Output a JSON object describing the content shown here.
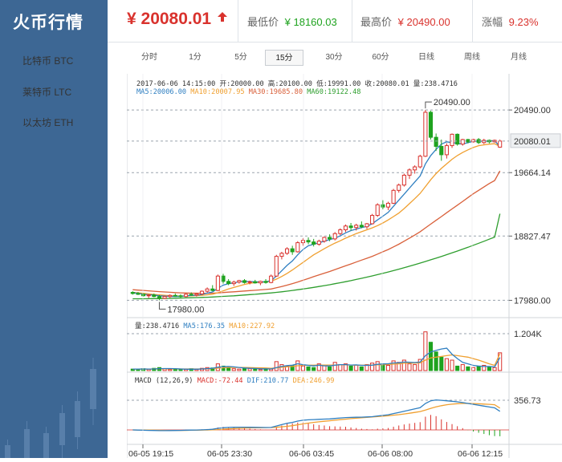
{
  "app": {
    "title": "火币行情"
  },
  "sidebar": {
    "items": [
      {
        "label": "比特币 BTC",
        "active": true
      },
      {
        "label": "莱特币 LTC",
        "active": false
      },
      {
        "label": "以太坊 ETH",
        "active": false
      }
    ]
  },
  "header": {
    "current_price": "¥ 20080.01",
    "trend": "up",
    "low": {
      "label": "最低价",
      "value": "¥ 18160.03"
    },
    "high": {
      "label": "最高价",
      "value": "¥ 20490.00"
    },
    "change": {
      "label": "涨幅",
      "value": "9.23%"
    }
  },
  "tabs": [
    {
      "label": "分时",
      "active": false
    },
    {
      "label": "1分",
      "active": false
    },
    {
      "label": "5分",
      "active": false
    },
    {
      "label": "15分",
      "active": true
    },
    {
      "label": "30分",
      "active": false
    },
    {
      "label": "60分",
      "active": false
    },
    {
      "label": "日线",
      "active": false
    },
    {
      "label": "周线",
      "active": false
    },
    {
      "label": "月线",
      "active": false
    }
  ],
  "kline_info": {
    "line1": "2017-06-06 14:15:00  开:20000.00 高:20100.00 低:19991.00 收:20080.01 量:238.4716",
    "ma5": "MA5:20006.00",
    "ma10": "MA10:20007.95",
    "ma30": "MA30:19685.80",
    "ma60": "MA60:19122.48"
  },
  "volume_info": {
    "vol": "量:238.4716",
    "ma5": "MA5:176.35",
    "ma10": "MA10:227.92"
  },
  "macd_info": {
    "label": "MACD (12,26,9)",
    "macd": "MACD:-72.44",
    "dif": "DIF:210.77",
    "dea": "DEA:246.99"
  },
  "colors": {
    "up": "#d9322d",
    "down": "#1fa31f",
    "ma5": "#2f7fc1",
    "ma10": "#f0a030",
    "ma30": "#d9603a",
    "ma60": "#2e9e2e",
    "sidebar": "#3d6794"
  },
  "chart_data": {
    "type": "candlestick",
    "price_axis_ticks": [
      "20490.00",
      "19664.14",
      "18827.47",
      "17980.00"
    ],
    "current_price_label": "20080.01",
    "high_marker": "20490.00",
    "low_marker": "17980.00",
    "volume_axis_ticks": [
      "1.204K"
    ],
    "macd_axis_ticks": [
      "356.73"
    ],
    "x_ticks": [
      "06-05 19:15",
      "06-05 23:30",
      "06-06 03:45",
      "06-06 08:00",
      "06-06 12:15"
    ],
    "ohlc": [
      [
        18085,
        18100,
        18055,
        18070
      ],
      [
        18070,
        18090,
        18050,
        18060
      ],
      [
        18060,
        18075,
        18030,
        18040
      ],
      [
        18040,
        18060,
        18010,
        18050
      ],
      [
        18050,
        18070,
        18020,
        18030
      ],
      [
        18030,
        18050,
        17980,
        18005
      ],
      [
        18005,
        18040,
        17995,
        18030
      ],
      [
        18030,
        18060,
        18010,
        18045
      ],
      [
        18045,
        18070,
        18030,
        18040
      ],
      [
        18040,
        18060,
        18015,
        18030
      ],
      [
        18030,
        18070,
        18020,
        18060
      ],
      [
        18060,
        18085,
        18040,
        18050
      ],
      [
        18050,
        18075,
        18030,
        18065
      ],
      [
        18065,
        18110,
        18055,
        18100
      ],
      [
        18100,
        18150,
        18080,
        18130
      ],
      [
        18130,
        18180,
        18100,
        18110
      ],
      [
        18110,
        18320,
        18100,
        18300
      ],
      [
        18300,
        18330,
        18200,
        18230
      ],
      [
        18230,
        18260,
        18180,
        18200
      ],
      [
        18200,
        18240,
        18170,
        18220
      ],
      [
        18220,
        18250,
        18200,
        18240
      ],
      [
        18240,
        18260,
        18200,
        18215
      ],
      [
        18215,
        18240,
        18190,
        18225
      ],
      [
        18225,
        18250,
        18200,
        18210
      ],
      [
        18210,
        18240,
        18180,
        18230
      ],
      [
        18230,
        18260,
        18200,
        18215
      ],
      [
        18215,
        18320,
        18205,
        18300
      ],
      [
        18300,
        18580,
        18290,
        18560
      ],
      [
        18560,
        18620,
        18520,
        18600
      ],
      [
        18600,
        18680,
        18580,
        18660
      ],
      [
        18660,
        18700,
        18580,
        18620
      ],
      [
        18620,
        18760,
        18610,
        18740
      ],
      [
        18740,
        18800,
        18700,
        18770
      ],
      [
        18770,
        18810,
        18720,
        18750
      ],
      [
        18750,
        18790,
        18690,
        18720
      ],
      [
        18720,
        18780,
        18700,
        18760
      ],
      [
        18760,
        18820,
        18740,
        18810
      ],
      [
        18810,
        18850,
        18760,
        18790
      ],
      [
        18790,
        18880,
        18770,
        18860
      ],
      [
        18860,
        18930,
        18840,
        18910
      ],
      [
        18910,
        18980,
        18880,
        18960
      ],
      [
        18960,
        19000,
        18900,
        18940
      ],
      [
        18940,
        18990,
        18900,
        18970
      ],
      [
        18970,
        19020,
        18930,
        18950
      ],
      [
        18950,
        19000,
        18920,
        18990
      ],
      [
        18990,
        19120,
        18980,
        19100
      ],
      [
        19100,
        19260,
        19080,
        19240
      ],
      [
        19240,
        19300,
        19180,
        19210
      ],
      [
        19210,
        19280,
        19170,
        19260
      ],
      [
        19260,
        19450,
        19250,
        19430
      ],
      [
        19430,
        19520,
        19400,
        19500
      ],
      [
        19500,
        19650,
        19480,
        19630
      ],
      [
        19630,
        19720,
        19580,
        19700
      ],
      [
        19700,
        19760,
        19650,
        19740
      ],
      [
        19740,
        19900,
        19720,
        19880
      ],
      [
        19880,
        20490,
        19870,
        20460
      ],
      [
        20460,
        20480,
        20100,
        20130
      ],
      [
        20130,
        20180,
        19950,
        20010
      ],
      [
        20010,
        20100,
        19820,
        19900
      ],
      [
        19900,
        20050,
        19850,
        20020
      ],
      [
        20020,
        20180,
        19990,
        20170
      ],
      [
        20170,
        20180,
        20020,
        20040
      ],
      [
        20040,
        20110,
        20020,
        20100
      ],
      [
        20100,
        20110,
        20050,
        20070
      ],
      [
        20070,
        20110,
        20060,
        20100
      ],
      [
        20100,
        20120,
        20040,
        20060
      ],
      [
        20060,
        20110,
        20040,
        20090
      ],
      [
        20090,
        20100,
        20050,
        20070
      ],
      [
        20070,
        20100,
        20060,
        20090
      ],
      [
        20000,
        20100,
        19991,
        20080.01
      ]
    ],
    "volume": [
      20,
      15,
      25,
      18,
      30,
      40,
      22,
      15,
      12,
      20,
      18,
      25,
      15,
      30,
      40,
      35,
      90,
      60,
      40,
      25,
      20,
      30,
      25,
      20,
      15,
      30,
      20,
      120,
      80,
      60,
      70,
      130,
      60,
      50,
      40,
      90,
      70,
      50,
      110,
      80,
      90,
      60,
      70,
      50,
      80,
      100,
      120,
      90,
      70,
      130,
      110,
      140,
      90,
      80,
      150,
      520,
      380,
      250,
      180,
      160,
      140,
      60,
      80,
      50,
      40,
      60,
      70,
      50,
      40,
      238.47
    ],
    "ma5": [
      18080,
      18072,
      18060,
      18053,
      18050,
      18040,
      18035,
      18032,
      18030,
      18032,
      18040,
      18045,
      18048,
      18058,
      18075,
      18090,
      18140,
      18180,
      18200,
      18210,
      18225,
      18230,
      18228,
      18225,
      18222,
      18225,
      18240,
      18300,
      18370,
      18440,
      18500,
      18580,
      18650,
      18700,
      18720,
      18740,
      18760,
      18780,
      18800,
      18830,
      18870,
      18900,
      18920,
      18940,
      18955,
      18990,
      19040,
      19090,
      19140,
      19220,
      19300,
      19380,
      19460,
      19540,
      19620,
      19780,
      19890,
      19970,
      20040,
      20070,
      20060,
      20050,
      20040,
      20060,
      20075,
      20080,
      20078,
      20080,
      20085,
      20006
    ],
    "ma10": [
      18085,
      18080,
      18072,
      18065,
      18058,
      18052,
      18046,
      18041,
      18037,
      18035,
      18037,
      18040,
      18043,
      18046,
      18052,
      18060,
      18080,
      18105,
      18130,
      18150,
      18170,
      18190,
      18205,
      18213,
      18218,
      18225,
      18232,
      18260,
      18295,
      18335,
      18380,
      18430,
      18480,
      18530,
      18580,
      18620,
      18660,
      18700,
      18735,
      18765,
      18800,
      18830,
      18860,
      18885,
      18910,
      18935,
      18965,
      19000,
      19040,
      19085,
      19130,
      19190,
      19255,
      19320,
      19390,
      19480,
      19570,
      19650,
      19720,
      19780,
      19840,
      19890,
      19930,
      19965,
      19995,
      20020,
      20030,
      20040,
      20045,
      20008
    ],
    "ma30": [
      18120,
      18115,
      18110,
      18105,
      18100,
      18095,
      18090,
      18086,
      18082,
      18079,
      18077,
      18075,
      18074,
      18073,
      18073,
      18074,
      18078,
      18083,
      18088,
      18093,
      18098,
      18103,
      18108,
      18113,
      18118,
      18123,
      18130,
      18145,
      18162,
      18180,
      18200,
      18222,
      18245,
      18268,
      18292,
      18315,
      18338,
      18360,
      18385,
      18410,
      18435,
      18460,
      18485,
      18510,
      18535,
      18560,
      18590,
      18620,
      18650,
      18685,
      18720,
      18760,
      18800,
      18840,
      18885,
      18935,
      18985,
      19035,
      19085,
      19135,
      19185,
      19235,
      19285,
      19335,
      19385,
      19430,
      19475,
      19520,
      19560,
      19686
    ],
    "ma60": [
      18000,
      18000,
      18001,
      18002,
      18003,
      18004,
      18005,
      18006,
      18008,
      18010,
      18012,
      18014,
      18016,
      18018,
      18021,
      18024,
      18028,
      18032,
      18036,
      18040,
      18045,
      18050,
      18055,
      18060,
      18066,
      18072,
      18078,
      18085,
      18093,
      18101,
      18110,
      18120,
      18130,
      18140,
      18151,
      18162,
      18174,
      18186,
      18199,
      18212,
      18226,
      18240,
      18255,
      18270,
      18286,
      18302,
      18319,
      18336,
      18354,
      18372,
      18391,
      18410,
      18430,
      18450,
      18471,
      18492,
      18514,
      18536,
      18559,
      18582,
      18606,
      18630,
      18655,
      18680,
      18706,
      18732,
      18759,
      18786,
      18814,
      19122
    ],
    "vol_ma5": [
      20,
      20,
      22,
      21,
      22,
      26,
      27,
      27,
      26,
      22,
      18,
      18,
      18,
      22,
      26,
      30,
      45,
      52,
      55,
      50,
      42,
      35,
      30,
      28,
      24,
      24,
      22,
      40,
      55,
      67,
      72,
      92,
      80,
      70,
      62,
      72,
      64,
      62,
      72,
      80,
      80,
      74,
      76,
      70,
      70,
      72,
      84,
      88,
      92,
      102,
      104,
      114,
      112,
      108,
      114,
      200,
      250,
      270,
      290,
      300,
      220,
      160,
      110,
      90,
      70,
      60,
      55,
      55,
      50,
      176
    ],
    "vol_ma10": [
      20,
      20,
      22,
      21,
      22,
      24,
      24,
      24,
      24,
      22,
      22,
      22,
      22,
      22,
      24,
      26,
      32,
      38,
      42,
      42,
      42,
      42,
      40,
      38,
      36,
      34,
      30,
      36,
      44,
      50,
      55,
      65,
      70,
      72,
      72,
      74,
      74,
      74,
      74,
      76,
      76,
      74,
      72,
      72,
      72,
      74,
      78,
      80,
      82,
      86,
      90,
      98,
      100,
      100,
      104,
      140,
      170,
      180,
      190,
      200,
      210,
      200,
      190,
      180,
      160,
      140,
      115,
      90,
      70,
      228
    ],
    "macd_dif": [
      0,
      -2,
      -4,
      -5,
      -6,
      -8,
      -8,
      -7,
      -6,
      -5,
      -3,
      -2,
      -1,
      1,
      4,
      7,
      18,
      25,
      28,
      30,
      31,
      31,
      30,
      29,
      28,
      27,
      28,
      45,
      60,
      75,
      85,
      100,
      110,
      115,
      117,
      120,
      123,
      125,
      130,
      135,
      140,
      142,
      144,
      145,
      147,
      150,
      158,
      165,
      172,
      185,
      198,
      212,
      225,
      238,
      252,
      300,
      330,
      340,
      335,
      330,
      325,
      318,
      310,
      300,
      290,
      280,
      270,
      260,
      250,
      211
    ],
    "macd_dea": [
      0,
      -1,
      -1,
      -2,
      -3,
      -4,
      -5,
      -5,
      -5,
      -5,
      -5,
      -4,
      -3,
      -2,
      -1,
      1,
      4,
      8,
      12,
      15,
      18,
      21,
      23,
      24,
      25,
      26,
      27,
      30,
      35,
      41,
      48,
      58,
      68,
      77,
      85,
      92,
      98,
      104,
      110,
      116,
      122,
      128,
      133,
      138,
      142,
      147,
      151,
      156,
      161,
      167,
      173,
      181,
      189,
      198,
      208,
      225,
      245,
      262,
      275,
      285,
      292,
      297,
      300,
      301,
      299,
      296,
      293,
      290,
      285,
      247
    ]
  }
}
